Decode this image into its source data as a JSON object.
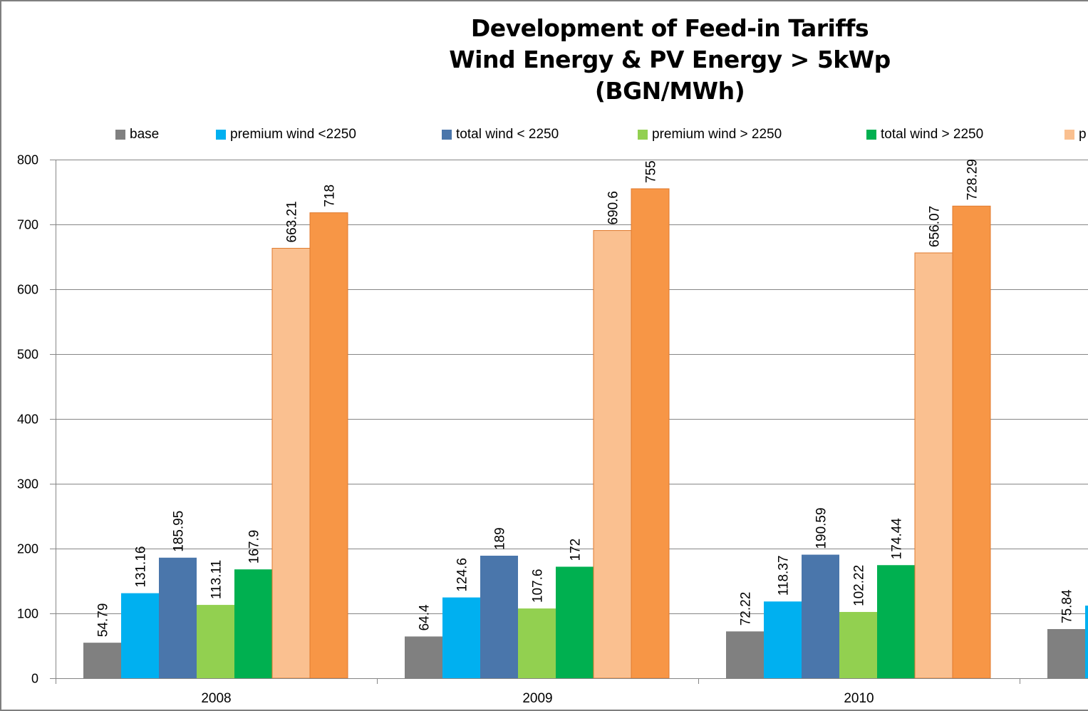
{
  "chart_data": {
    "type": "bar",
    "title": [
      "Development of Feed-in Tariffs",
      "Wind Energy & PV Energy > 5kWp",
      "(BGN/MWh)"
    ],
    "xlabel": "",
    "ylabel": "",
    "ylim": [
      0,
      800
    ],
    "yticks": [
      0,
      100,
      200,
      300,
      400,
      500,
      600,
      700,
      800
    ],
    "grid": true,
    "legend_position": "top",
    "categories": [
      "2008",
      "2009",
      "2010",
      ""
    ],
    "series": [
      {
        "name": "base",
        "color": "#808080",
        "values": [
          54.79,
          64.4,
          72.22,
          75.84
        ]
      },
      {
        "name": "premium wind <2250",
        "color": "#00b0f0",
        "values": [
          131.16,
          124.6,
          118.37,
          112
        ]
      },
      {
        "name": "total wind < 2250",
        "color": "#4a76ab",
        "values": [
          185.95,
          189,
          190.59,
          null
        ]
      },
      {
        "name": "premium wind > 2250",
        "color": "#92d050",
        "values": [
          113.11,
          107.6,
          102.22,
          null
        ]
      },
      {
        "name": "total wind > 2250",
        "color": "#00b050",
        "values": [
          167.9,
          172,
          174.44,
          null
        ]
      },
      {
        "name": "p",
        "color": "#fac090",
        "values": [
          663.21,
          690.6,
          656.07,
          null
        ]
      },
      {
        "name": "",
        "color": "#f79646",
        "values": [
          718,
          755,
          728.29,
          null
        ]
      }
    ],
    "data_labels": [
      [
        "54.79",
        "64.4",
        "72.22",
        "75.84"
      ],
      [
        "131.16",
        "124.6",
        "118.37",
        ""
      ],
      [
        "185.95",
        "189",
        "190.59",
        ""
      ],
      [
        "113.11",
        "107.6",
        "102.22",
        ""
      ],
      [
        "167.9",
        "172",
        "174.44",
        ""
      ],
      [
        "663.21",
        "690.6",
        "656.07",
        ""
      ],
      [
        "718",
        "755",
        "728.29",
        ""
      ]
    ]
  },
  "legend": [
    {
      "label": "base",
      "color": "#808080"
    },
    {
      "label": "premium wind <2250",
      "color": "#00b0f0"
    },
    {
      "label": "total wind < 2250",
      "color": "#4a76ab"
    },
    {
      "label": "premium wind > 2250",
      "color": "#92d050"
    },
    {
      "label": "total wind > 2250",
      "color": "#00b050"
    },
    {
      "label": "p",
      "color": "#fac090"
    }
  ]
}
